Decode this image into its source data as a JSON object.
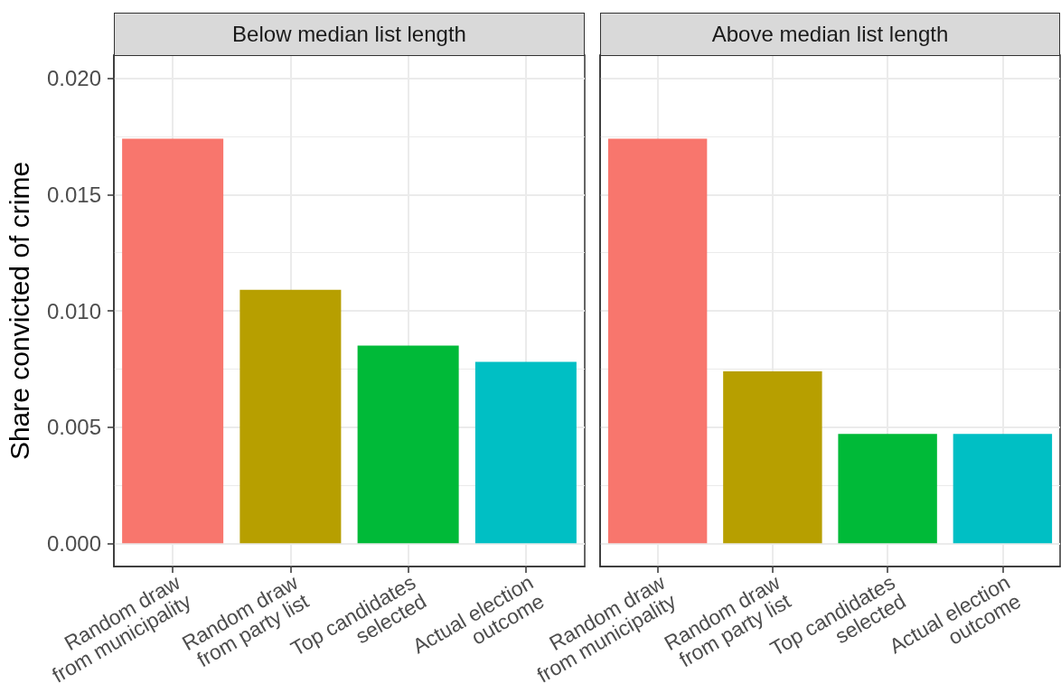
{
  "chart_data": [
    {
      "type": "bar",
      "title": "Below median list length",
      "ylabel": "Share convicted of crime",
      "categories": [
        "Random draw\nfrom municipality",
        "Random draw\nfrom party list",
        "Top candidates\nselected",
        "Actual election\noutcome"
      ],
      "values": [
        0.0174,
        0.0109,
        0.0085,
        0.0078
      ],
      "colors": [
        "#f8766d",
        "#b79f00",
        "#00ba38",
        "#00bfc4"
      ],
      "ylim": [
        -0.001,
        0.021
      ],
      "yticks": [
        {
          "value": 0,
          "label": "0.000"
        },
        0.005,
        {
          "value": 0.01,
          "label": "0.010"
        },
        0.015,
        {
          "value": 0.02,
          "label": "0.020"
        }
      ],
      "grid": true
    },
    {
      "type": "bar",
      "title": "Above median list length",
      "categories": [
        "Random draw\nfrom municipality",
        "Random draw\nfrom party list",
        "Top candidates\nselected",
        "Actual election\noutcome"
      ],
      "values": [
        0.0174,
        0.0074,
        0.0047,
        0.0047
      ],
      "colors": [
        "#f8766d",
        "#b79f00",
        "#00ba38",
        "#00bfc4"
      ],
      "ylim": [
        -0.001,
        0.021
      ],
      "yticks": [
        0,
        0.005,
        0.01,
        0.015,
        0.02
      ],
      "grid": true,
      "tick_labels": "x"
    }
  ]
}
